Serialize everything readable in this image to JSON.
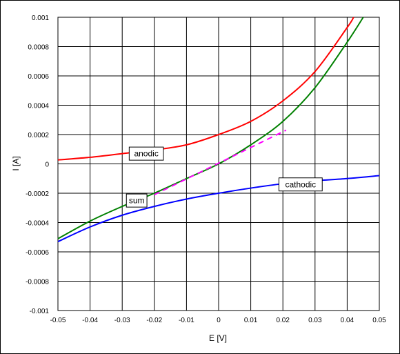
{
  "chart_data": {
    "type": "line",
    "title": "",
    "xlabel": "E [V]",
    "ylabel": "I [A]",
    "xlim": [
      -0.05,
      0.05
    ],
    "ylim": [
      -0.001,
      0.001
    ],
    "x_ticks": [
      -0.05,
      -0.04,
      -0.03,
      -0.02,
      -0.01,
      0,
      0.01,
      0.02,
      0.03,
      0.04,
      0.05
    ],
    "x_tick_labels": [
      "-0.05",
      "-0.04",
      "-0.03",
      "-0.02",
      "-0.01",
      "0",
      "0.01",
      "0.02",
      "0.03",
      "0.04",
      "0.05"
    ],
    "y_ticks": [
      0.001,
      0.0008,
      0.0006,
      0.0004,
      0.0002,
      0,
      -0.0002,
      -0.0004,
      -0.0006,
      -0.0008,
      -0.001
    ],
    "y_tick_labels": [
      "0.001",
      "0.0008",
      "0.0006",
      "0.0004",
      "0.0002",
      "0",
      "-0.0002",
      "-0.0004",
      "-0.0006",
      "-0.0008",
      "-0.001"
    ],
    "grid": true,
    "legend": "none",
    "series": [
      {
        "name": "anodic",
        "color": "#ff0000",
        "x": [
          -0.05,
          -0.04,
          -0.03,
          -0.02,
          -0.01,
          0,
          0.01,
          0.02,
          0.03,
          0.04,
          0.042
        ],
        "y": [
          2.7e-05,
          4.5e-05,
          7e-05,
          9.5e-05,
          0.00013,
          0.0002,
          0.00029,
          0.00043,
          0.00063,
          0.00093,
          0.001
        ]
      },
      {
        "name": "cathodic",
        "color": "#0000ff",
        "x": [
          -0.05,
          -0.04,
          -0.03,
          -0.02,
          -0.01,
          0,
          0.01,
          0.02,
          0.03,
          0.04,
          0.05
        ],
        "y": [
          -0.00053,
          -0.00043,
          -0.00035,
          -0.00029,
          -0.00024,
          -0.0002,
          -0.000165,
          -0.000135,
          -0.000115,
          -0.0001,
          -8e-05
        ]
      },
      {
        "name": "sum",
        "color": "#008000",
        "x": [
          -0.05,
          -0.04,
          -0.03,
          -0.02,
          -0.01,
          0,
          0.01,
          0.02,
          0.03,
          0.04,
          0.045
        ],
        "y": [
          -0.00051,
          -0.00039,
          -0.00029,
          -0.0002,
          -0.0001,
          0,
          0.00013,
          0.00029,
          0.00052,
          0.00083,
          0.001
        ]
      },
      {
        "name": "",
        "color": "#ff00ff",
        "dashed": true,
        "x": [
          -0.02,
          0.021
        ],
        "y": [
          -0.00021,
          0.00023
        ]
      }
    ],
    "annotations": [
      {
        "text": "anodic",
        "x": -0.0225,
        "y": 7e-05
      },
      {
        "text": "sum",
        "x": -0.0255,
        "y": -0.00025
      },
      {
        "text": "cathodic",
        "x": 0.0255,
        "y": -0.00014
      }
    ]
  }
}
